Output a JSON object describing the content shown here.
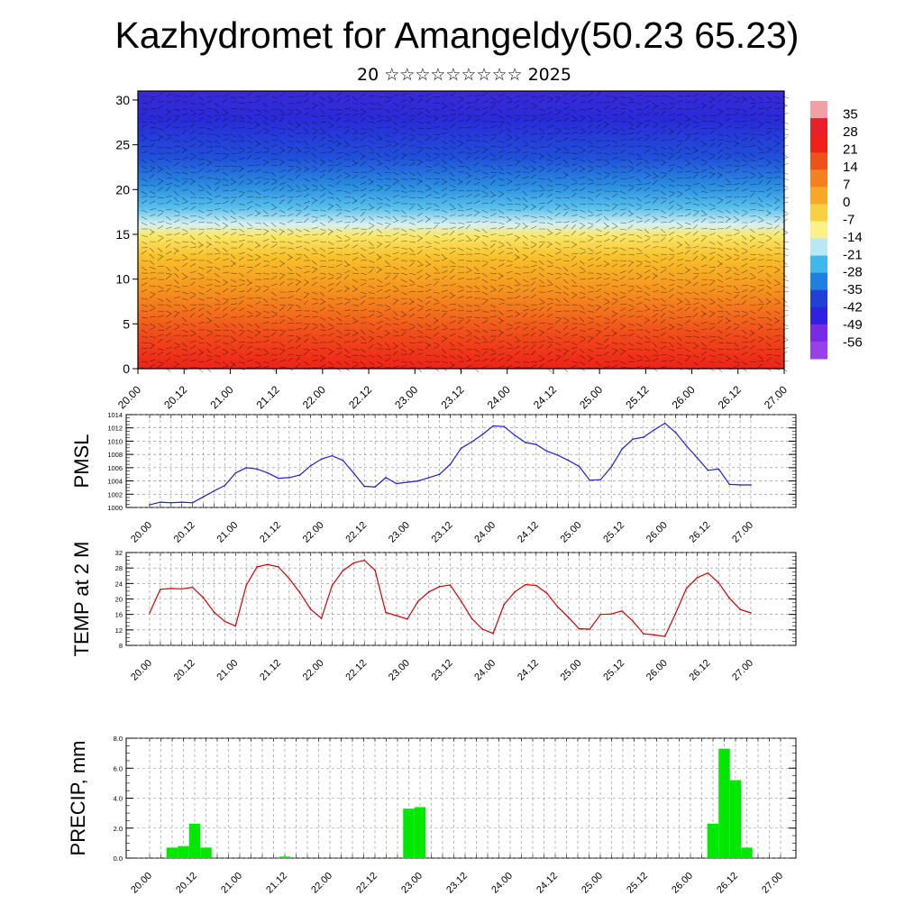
{
  "title": "Kazhydromet for Amangeldy(50.23 65.23)",
  "subtitle": "20 ☆☆☆☆☆☆☆☆☆ 2025",
  "colors": {
    "pmsl_line": "#1f1fd6",
    "temp_line": "#d40000",
    "precip_bar": "#00e800",
    "grid": "#888888"
  },
  "time_labels": [
    "20.00",
    "20.12",
    "21.00",
    "21.12",
    "22.00",
    "22.12",
    "23.00",
    "23.12",
    "24.00",
    "24.12",
    "25.00",
    "25.12",
    "26.00",
    "26.12",
    "27.00"
  ],
  "chart_data": [
    {
      "type": "heatmap",
      "name_hint": "cross-section",
      "y_ticks": [
        "0",
        "5",
        "10",
        "15",
        "20",
        "25",
        "30"
      ],
      "ylim": [
        0,
        31
      ],
      "colorbar_labels": [
        "35",
        "28",
        "21",
        "14",
        "7",
        "0",
        "-7",
        "-14",
        "-21",
        "-28",
        "-35",
        "-42",
        "-49",
        "-56"
      ],
      "colorbar_colors": [
        "#f2a0a6",
        "#e8202a",
        "#ee2218",
        "#f0501a",
        "#f58020",
        "#f8a828",
        "#fbd040",
        "#fbf08a",
        "#b8e8f2",
        "#40b8ea",
        "#2080e0",
        "#2040d8",
        "#3020e0",
        "#7a2ae6",
        "#9a40ea"
      ]
    },
    {
      "type": "line",
      "ylabel": "PMSL",
      "ylim": [
        1000,
        1014
      ],
      "y_ticks": [
        "1014",
        "1012",
        "1010",
        "1008",
        "1006",
        "1004",
        "1002",
        "1000"
      ],
      "x": [
        0,
        1,
        2,
        3,
        4,
        5,
        6,
        7,
        8,
        9,
        10,
        11,
        12,
        13,
        14,
        15,
        16,
        17,
        18,
        19,
        20,
        21,
        22,
        23,
        24,
        25,
        26,
        27,
        28,
        29,
        30,
        31,
        32,
        33,
        34,
        35,
        36,
        37,
        38,
        39,
        40,
        41,
        42,
        43,
        44,
        45,
        46,
        47,
        48,
        49,
        50,
        51,
        52,
        53,
        54,
        55,
        56
      ],
      "values": [
        1000.4,
        1000.8,
        1000.7,
        1000.8,
        1000.7,
        1001.6,
        1002.5,
        1003.3,
        1005.2,
        1006.0,
        1005.8,
        1005.2,
        1004.4,
        1004.5,
        1004.9,
        1006.3,
        1007.3,
        1007.8,
        1007.1,
        1005.2,
        1003.2,
        1003.1,
        1004.5,
        1003.6,
        1003.8,
        1004.0,
        1004.5,
        1005.0,
        1006.5,
        1008.9,
        1009.9,
        1011.0,
        1012.3,
        1012.2,
        1010.9,
        1009.8,
        1009.5,
        1008.5,
        1007.9,
        1007.1,
        1006.2,
        1004.1,
        1004.2,
        1006.1,
        1008.8,
        1010.3,
        1010.6,
        1011.7,
        1012.7,
        1011.3,
        1009.3,
        1007.5,
        1005.6,
        1005.8,
        1003.5,
        1003.4,
        1003.4
      ]
    },
    {
      "type": "line",
      "ylabel": "TEMP at 2 M",
      "ylim": [
        8,
        32
      ],
      "y_ticks": [
        "32",
        "28",
        "24",
        "20",
        "16",
        "12",
        "8"
      ],
      "x": [
        0,
        1,
        2,
        3,
        4,
        5,
        6,
        7,
        8,
        9,
        10,
        11,
        12,
        13,
        14,
        15,
        16,
        17,
        18,
        19,
        20,
        21,
        22,
        23,
        24,
        25,
        26,
        27,
        28,
        29,
        30,
        31,
        32,
        33,
        34,
        35,
        36,
        37,
        38,
        39,
        40,
        41,
        42,
        43,
        44,
        45,
        46,
        47,
        48,
        49,
        50,
        51,
        52,
        53,
        54,
        55,
        56
      ],
      "values": [
        16.4,
        22.5,
        22.7,
        22.6,
        23.0,
        20.3,
        16.6,
        14.2,
        13.0,
        23.5,
        28.3,
        28.9,
        28.3,
        25.3,
        21.6,
        17.3,
        15.0,
        23.5,
        27.3,
        29.3,
        30.0,
        27.4,
        16.5,
        15.7,
        14.8,
        19.4,
        21.8,
        23.2,
        23.6,
        19.5,
        15.0,
        12.2,
        11.1,
        18.5,
        21.8,
        23.7,
        23.5,
        21.5,
        18.0,
        15.3,
        12.3,
        12.2,
        16.0,
        16.1,
        16.9,
        14.3,
        11.0,
        10.7,
        10.3,
        16.3,
        22.7,
        25.5,
        26.7,
        24.2,
        20.2,
        17.3,
        16.4
      ]
    },
    {
      "type": "bar",
      "ylabel": "PRECIP, mm",
      "ylim": [
        0,
        8
      ],
      "y_ticks": [
        "8.0",
        "6.0",
        "4.0",
        "2.0",
        "0.0"
      ],
      "x": [
        0,
        1,
        2,
        3,
        4,
        5,
        6,
        7,
        8,
        9,
        10,
        11,
        12,
        13,
        14,
        15,
        16,
        17,
        18,
        19,
        20,
        21,
        22,
        23,
        24,
        25,
        26,
        27,
        28,
        29,
        30,
        31,
        32,
        33,
        34,
        35,
        36,
        37,
        38,
        39,
        40,
        41,
        42,
        43,
        44,
        45,
        46,
        47,
        48,
        49,
        50,
        51,
        52,
        53,
        54,
        55,
        56
      ],
      "values": [
        0,
        0,
        0.7,
        0.8,
        2.3,
        0.7,
        0,
        0,
        0,
        0,
        0,
        0,
        0.1,
        0,
        0,
        0,
        0,
        0,
        0,
        0,
        0,
        0,
        0,
        3.3,
        3.4,
        0,
        0,
        0,
        0,
        0,
        0,
        0,
        0,
        0,
        0,
        0,
        0,
        0,
        0,
        0,
        0,
        0,
        0,
        0,
        0,
        0,
        0,
        0,
        0,
        0,
        2.3,
        7.3,
        5.2,
        0.7,
        0,
        0,
        0
      ]
    }
  ]
}
